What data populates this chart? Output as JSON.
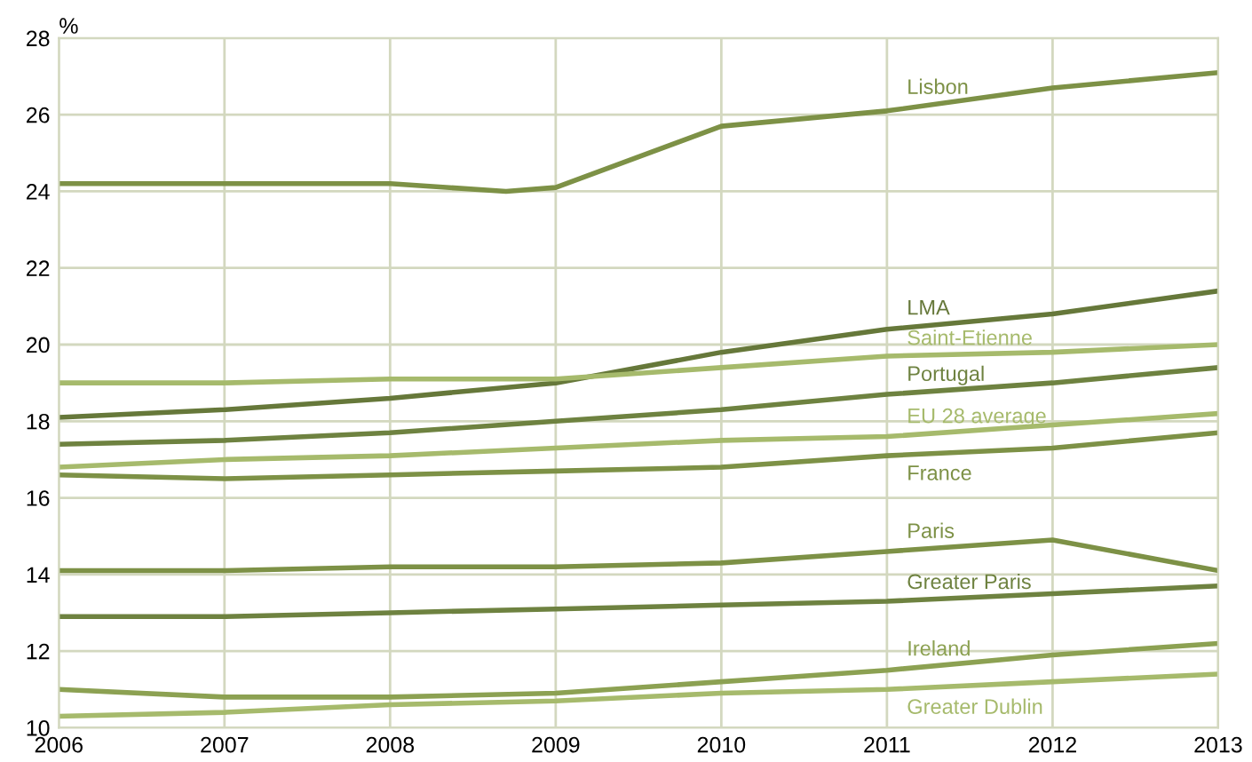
{
  "chart_data": {
    "type": "line",
    "ylabel": "%",
    "xlim": [
      2006,
      2013
    ],
    "ylim": [
      10,
      28
    ],
    "xticks": [
      2006,
      2007,
      2008,
      2009,
      2010,
      2011,
      2012,
      2013
    ],
    "yticks": [
      10,
      12,
      14,
      16,
      18,
      20,
      22,
      24,
      26,
      28
    ],
    "grid": true,
    "legend": false,
    "marker": "none",
    "line_style": "solid",
    "series": [
      {
        "name": "Lisbon",
        "color": "#7d9146",
        "x": [
          2006,
          2007,
          2008,
          2008.7,
          2009,
          2010,
          2011,
          2012,
          2013
        ],
        "values": [
          24.2,
          24.2,
          24.2,
          24.0,
          24.1,
          25.7,
          26.1,
          26.7,
          27.1
        ]
      },
      {
        "name": "LMA",
        "color": "#66783a",
        "x": [
          2006,
          2007,
          2008,
          2009,
          2010,
          2011,
          2012,
          2013
        ],
        "values": [
          18.1,
          18.3,
          18.6,
          19.0,
          19.8,
          20.4,
          20.8,
          21.4
        ]
      },
      {
        "name": "Saint-Etienne",
        "color": "#a6ba6c",
        "x": [
          2006,
          2007,
          2008,
          2009,
          2010,
          2011,
          2012,
          2013
        ],
        "values": [
          19.0,
          19.0,
          19.1,
          19.1,
          19.4,
          19.7,
          19.8,
          20.0
        ]
      },
      {
        "name": "Portugal",
        "color": "#6e8240",
        "x": [
          2006,
          2007,
          2008,
          2009,
          2010,
          2011,
          2012,
          2013
        ],
        "values": [
          17.4,
          17.5,
          17.7,
          18.0,
          18.3,
          18.7,
          19.0,
          19.4
        ]
      },
      {
        "name": "EU 28 average",
        "color": "#a6ba6c",
        "x": [
          2006,
          2007,
          2008,
          2009,
          2010,
          2011,
          2012,
          2013
        ],
        "values": [
          16.8,
          17.0,
          17.1,
          17.3,
          17.5,
          17.6,
          17.9,
          18.2
        ]
      },
      {
        "name": "France",
        "color": "#7d9146",
        "x": [
          2006,
          2007,
          2008,
          2009,
          2010,
          2011,
          2012,
          2013
        ],
        "values": [
          16.6,
          16.5,
          16.6,
          16.7,
          16.8,
          17.1,
          17.3,
          17.7
        ]
      },
      {
        "name": "Paris",
        "color": "#7d9146",
        "x": [
          2006,
          2007,
          2008,
          2009,
          2010,
          2011,
          2012,
          2013
        ],
        "values": [
          14.1,
          14.1,
          14.2,
          14.2,
          14.3,
          14.6,
          14.9,
          14.1
        ]
      },
      {
        "name": "Greater Paris",
        "color": "#6e8240",
        "x": [
          2006,
          2007,
          2008,
          2009,
          2010,
          2011,
          2012,
          2013
        ],
        "values": [
          12.9,
          12.9,
          13.0,
          13.1,
          13.2,
          13.3,
          13.5,
          13.7
        ]
      },
      {
        "name": "Ireland",
        "color": "#8ca152",
        "x": [
          2006,
          2007,
          2008,
          2009,
          2010,
          2011,
          2012,
          2013
        ],
        "values": [
          11.0,
          10.8,
          10.8,
          10.9,
          11.2,
          11.5,
          11.9,
          12.2
        ]
      },
      {
        "name": "Greater Dublin",
        "color": "#a6ba6c",
        "x": [
          2006,
          2007,
          2008,
          2009,
          2010,
          2011,
          2012,
          2013
        ],
        "values": [
          10.3,
          10.4,
          10.6,
          10.7,
          10.9,
          11.0,
          11.2,
          11.4
        ]
      }
    ]
  }
}
